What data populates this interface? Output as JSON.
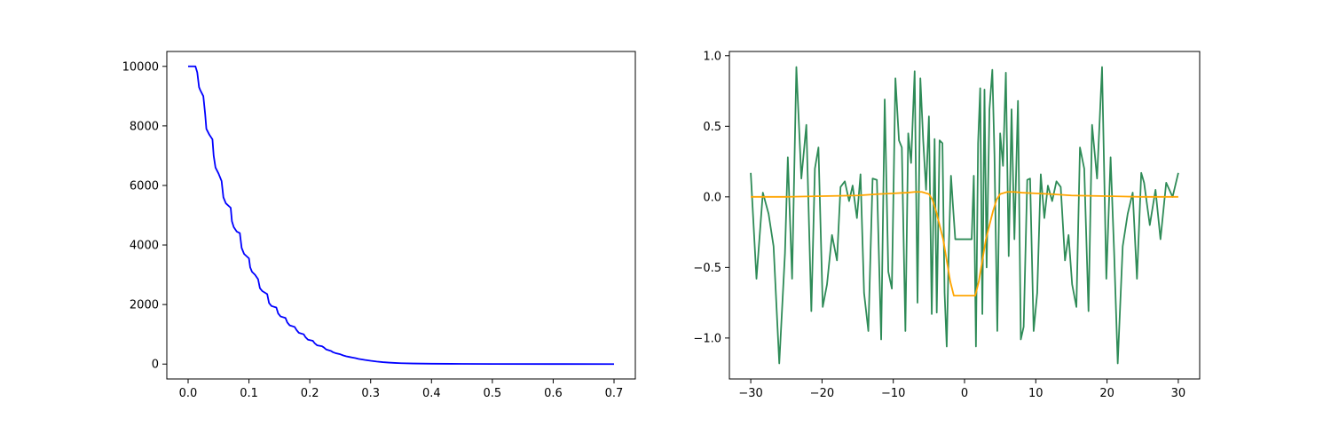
{
  "chart_data": [
    {
      "type": "line",
      "title": "",
      "xlabel": "",
      "ylabel": "",
      "xlim": [
        -0.035,
        0.735
      ],
      "ylim": [
        -500,
        10500
      ],
      "xticks": [
        0.0,
        0.1,
        0.2,
        0.3,
        0.4,
        0.5,
        0.6,
        0.7
      ],
      "xtick_labels": [
        "0.0",
        "0.1",
        "0.2",
        "0.3",
        "0.4",
        "0.5",
        "0.6",
        "0.7"
      ],
      "yticks": [
        0,
        2000,
        4000,
        6000,
        8000,
        10000
      ],
      "ytick_labels": [
        "0",
        "2000",
        "4000",
        "6000",
        "8000",
        "10000"
      ],
      "grid": false,
      "series": [
        {
          "color": "#0000ff",
          "x": [
            0.0,
            0.012,
            0.015,
            0.018,
            0.02,
            0.025,
            0.028,
            0.03,
            0.035,
            0.04,
            0.042,
            0.045,
            0.05,
            0.055,
            0.058,
            0.062,
            0.07,
            0.072,
            0.075,
            0.08,
            0.085,
            0.088,
            0.092,
            0.1,
            0.102,
            0.105,
            0.11,
            0.115,
            0.118,
            0.122,
            0.13,
            0.133,
            0.137,
            0.145,
            0.148,
            0.152,
            0.16,
            0.163,
            0.167,
            0.175,
            0.178,
            0.182,
            0.19,
            0.193,
            0.197,
            0.205,
            0.208,
            0.212,
            0.22,
            0.223,
            0.227,
            0.235,
            0.238,
            0.242,
            0.25,
            0.255,
            0.26,
            0.265,
            0.27,
            0.275,
            0.28,
            0.29,
            0.3,
            0.31,
            0.32,
            0.33,
            0.34,
            0.35,
            0.37,
            0.4,
            0.45,
            0.5,
            0.6,
            0.7
          ],
          "y": [
            10000,
            10000,
            9800,
            9300,
            9200,
            9000,
            8400,
            7900,
            7700,
            7550,
            7000,
            6600,
            6400,
            6150,
            5600,
            5400,
            5250,
            4800,
            4600,
            4450,
            4400,
            3900,
            3700,
            3550,
            3250,
            3100,
            3000,
            2850,
            2550,
            2450,
            2350,
            2050,
            1950,
            1900,
            1700,
            1600,
            1550,
            1400,
            1300,
            1250,
            1150,
            1050,
            1000,
            900,
            820,
            780,
            700,
            630,
            600,
            560,
            490,
            440,
            400,
            370,
            330,
            290,
            260,
            240,
            220,
            200,
            175,
            140,
            110,
            85,
            65,
            50,
            38,
            30,
            20,
            12,
            6,
            3,
            1,
            0
          ]
        }
      ]
    },
    {
      "type": "line",
      "title": "",
      "xlabel": "",
      "ylabel": "",
      "xlim": [
        -33.0,
        33.0
      ],
      "ylim": [
        -1.29,
        1.03
      ],
      "xticks": [
        -30,
        -20,
        -10,
        0,
        10,
        20,
        30
      ],
      "xtick_labels": [
        "−30",
        "−20",
        "−10",
        "0",
        "10",
        "20",
        "30"
      ],
      "yticks": [
        -1.0,
        -0.5,
        0.0,
        0.5,
        1.0
      ],
      "ytick_labels": [
        "−1.0",
        "−0.5",
        "0.0",
        "0.5",
        "1.0"
      ],
      "grid": false,
      "series": [
        {
          "color": "#2e8b57",
          "x": [
            -30.0,
            -29.2,
            -28.3,
            -27.5,
            -26.8,
            -26.0,
            -25.2,
            -24.8,
            -24.2,
            -23.6,
            -22.9,
            -22.2,
            -21.5,
            -21.0,
            -20.5,
            -19.9,
            -19.3,
            -18.6,
            -17.9,
            -17.4,
            -16.8,
            -16.2,
            -15.7,
            -15.1,
            -14.6,
            -14.1,
            -13.5,
            -12.9,
            -12.3,
            -11.7,
            -11.2,
            -10.7,
            -10.2,
            -9.7,
            -9.2,
            -8.8,
            -8.3,
            -7.9,
            -7.5,
            -7.0,
            -6.6,
            -6.2,
            -5.8,
            -5.4,
            -5.0,
            -4.6,
            -4.2,
            -3.9,
            -3.5,
            -3.1,
            -2.8,
            -2.5,
            -2.2,
            -1.9,
            -1.6,
            -1.3,
            -1.0,
            1.0,
            1.3,
            1.6,
            1.9,
            2.2,
            2.5,
            2.8,
            3.1,
            3.5,
            3.9,
            4.2,
            4.6,
            5.0,
            5.4,
            5.8,
            6.2,
            6.6,
            7.0,
            7.5,
            7.9,
            8.3,
            8.8,
            9.2,
            9.7,
            10.2,
            10.7,
            11.2,
            11.7,
            12.3,
            12.9,
            13.5,
            14.1,
            14.6,
            15.1,
            15.7,
            16.2,
            16.8,
            17.4,
            17.9,
            18.6,
            19.3,
            19.9,
            20.5,
            21.0,
            21.5,
            22.2,
            22.9,
            23.6,
            24.2,
            24.8,
            25.2,
            26.0,
            26.8,
            27.5,
            28.3,
            29.2,
            30.0
          ],
          "y": [
            0.17,
            -0.58,
            0.03,
            -0.12,
            -0.35,
            -1.18,
            -0.4,
            0.28,
            -0.58,
            0.92,
            0.13,
            0.51,
            -0.81,
            0.2,
            0.35,
            -0.78,
            -0.62,
            -0.27,
            -0.45,
            0.07,
            0.11,
            -0.03,
            0.08,
            -0.15,
            0.16,
            -0.68,
            -0.95,
            0.13,
            0.12,
            -1.01,
            0.69,
            -0.53,
            -0.65,
            0.84,
            0.4,
            0.35,
            -0.95,
            0.45,
            0.24,
            0.89,
            -0.75,
            0.84,
            0.4,
            0.05,
            0.57,
            -0.83,
            0.41,
            -0.82,
            0.4,
            0.38,
            -0.68,
            -1.06,
            -0.35,
            0.15,
            -0.08,
            -0.3,
            -0.3,
            -0.3,
            0.15,
            -1.06,
            0.38,
            0.77,
            -0.83,
            0.76,
            -0.5,
            0.62,
            0.9,
            0.3,
            -0.95,
            0.45,
            0.22,
            0.88,
            -0.42,
            0.62,
            -0.3,
            0.68,
            -1.01,
            -0.92,
            0.12,
            0.13,
            -0.95,
            -0.68,
            0.16,
            -0.15,
            0.08,
            -0.03,
            0.11,
            0.07,
            -0.45,
            -0.27,
            -0.62,
            -0.78,
            0.35,
            0.2,
            -0.81,
            0.51,
            0.13,
            0.92,
            -0.58,
            0.28,
            -0.4,
            -1.18,
            -0.35,
            -0.12,
            0.03,
            -0.58,
            0.17,
            0.1,
            -0.2,
            0.05,
            -0.3,
            0.1,
            0.0,
            0.17
          ]
        },
        {
          "color": "#ffa500",
          "x": [
            -30,
            -25,
            -20,
            -15,
            -12,
            -10,
            -8,
            -7,
            -6,
            -5,
            -4.5,
            -4,
            -3.5,
            -3,
            -2.5,
            -2,
            -1.5,
            -1,
            1,
            1.5,
            2,
            2.5,
            3,
            3.5,
            4,
            4.5,
            5,
            6,
            7,
            8,
            10,
            12,
            15,
            20,
            25,
            30
          ],
          "y": [
            0.0,
            0.0,
            0.005,
            0.01,
            0.02,
            0.025,
            0.03,
            0.035,
            0.035,
            0.02,
            -0.02,
            -0.1,
            -0.2,
            -0.3,
            -0.45,
            -0.6,
            -0.7,
            -0.7,
            -0.7,
            -0.7,
            -0.6,
            -0.45,
            -0.3,
            -0.2,
            -0.1,
            -0.02,
            0.02,
            0.035,
            0.035,
            0.03,
            0.025,
            0.02,
            0.01,
            0.005,
            0.0,
            0.0
          ]
        }
      ]
    }
  ]
}
